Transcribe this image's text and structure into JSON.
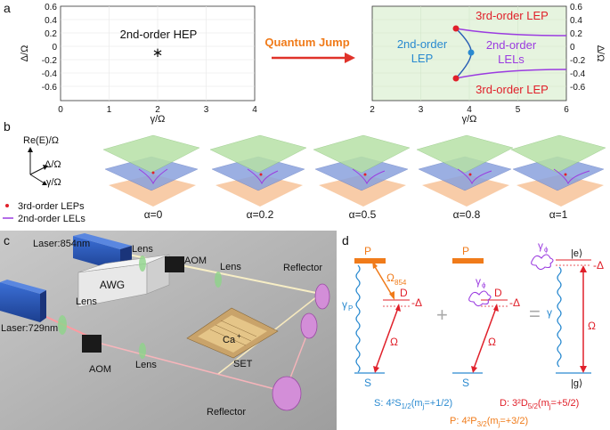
{
  "panel_letters": {
    "a": "a",
    "b": "b",
    "c": "c",
    "d": "d"
  },
  "panel_a": {
    "left_plot": {
      "xlabel": "γ/Ω",
      "ylabel": "Δ/Ω",
      "x_ticks": [
        "0",
        "1",
        "2",
        "3",
        "4"
      ],
      "y_ticks": [
        "0.6",
        "0.4",
        "0.2",
        "0",
        "-0.2",
        "-0.4",
        "-0.6"
      ],
      "annotation": "2nd-order HEP",
      "marker": "∗"
    },
    "arrow_label": "Quantum Jump",
    "right_plot": {
      "xlabel": "γ/Ω",
      "ylabel": "Δ/Ω",
      "x_ticks": [
        "2",
        "3",
        "4",
        "5",
        "6"
      ],
      "y_ticks": [
        "0.6",
        "0.4",
        "0.2",
        "0",
        "-0.2",
        "-0.4",
        "-0.6"
      ],
      "label_top": "3rd-order LEP",
      "label_bottom": "3rd-order LEP",
      "label_lep_1": "2nd-order",
      "label_lep_2": "LEP",
      "label_lel_1": "2nd-order",
      "label_lel_2": "LELs"
    },
    "colors": {
      "accent_orange": "#f07b1a",
      "arrow_red": "#e0322a",
      "lep_red": "#e0202a",
      "lep_blue": "#2a8ad0",
      "lel_purple": "#9b3ce0",
      "green_fill": "#e6f4df"
    }
  },
  "panel_b": {
    "axis_re": "Re(E)/Ω",
    "axis_delta": "Δ/Ω",
    "axis_gamma": "γ/Ω",
    "legend": [
      {
        "marker": "•",
        "label": "3rd-order LEPs"
      },
      {
        "marker": "—",
        "label": "2nd-order LELs"
      }
    ],
    "alphas": [
      "α=0",
      "α=0.2",
      "α=0.5",
      "α=0.8",
      "α=1"
    ]
  },
  "panel_c": {
    "labels": {
      "laser854": "Laser:854nm",
      "laser729": "Laser:729nm",
      "aom_top": "AOM",
      "aom_bottom": "AOM",
      "awg": "AWG",
      "lens_1": "Lens",
      "lens_2": "Lens",
      "lens_3": "Lens",
      "lens_4": "Lens",
      "reflector_top": "Reflector",
      "reflector_bottom": "Reflector",
      "ion": "Ca",
      "ion_charge": "+",
      "set": "SET"
    }
  },
  "panel_d": {
    "level_p": "P",
    "level_p2": "P",
    "level_d": "D",
    "level_d2": "D",
    "level_s": "S",
    "level_s2": "S",
    "omega": "Ω",
    "omega854": "Ω",
    "omega854_sub": "854",
    "gamma_p": "γ",
    "gamma_p_sub": "P",
    "gamma_phi": "γ",
    "gamma_phi_sub": "ϕ",
    "gamma": "γ",
    "minus_delta": "-Δ",
    "ket_e": "|e⟩",
    "ket_g": "|g⟩",
    "plus": "+",
    "equals": "=",
    "s_def": "S: 4²S",
    "s_sub": "1/2",
    "s_tail": "(m",
    "s_mj": "j",
    "s_val": "=+1/2)",
    "d_def": "D: 3²D",
    "d_sub": "5/2",
    "d_tail": "(m",
    "d_mj": "j",
    "d_val": "=+5/2)",
    "p_def": "P: 4²P",
    "p_sub": "3/2",
    "p_tail": "(m",
    "p_mj": "j",
    "p_val": "=+3/2)"
  }
}
